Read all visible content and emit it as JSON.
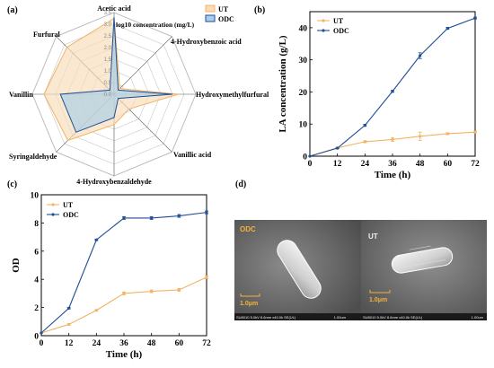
{
  "panels": {
    "a": "(a)",
    "b": "(b)",
    "c": "(c)",
    "d": "(d)"
  },
  "colors": {
    "ut": "#f2b366",
    "odc": "#1f4e96",
    "ut_fill": "#f8dcb8",
    "odc_fill": "#a9cfe6",
    "radar_grid": "#b8b8b8",
    "sem_bg": "#6a6a6a",
    "sem_label": "#f0b23a"
  },
  "chart_data": [
    {
      "type": "radar",
      "panel": "(a)",
      "axes": [
        "Acetic acid",
        "4-Hydroxybenzoic acid",
        "Hydroxymethylfurfural",
        "Vanillic acid",
        "4-Hydroxybenzaldehyde",
        "Syringaldehyde",
        "Vanillin",
        "Furfural"
      ],
      "range": [
        0,
        3.5
      ],
      "scale_title": "log10 concentration (mg/L)",
      "scale_ticks": [
        "0.0",
        "0.5",
        "1.0",
        "1.5",
        "2.0",
        "2.5",
        "3.0",
        "3.5"
      ],
      "legend": [
        "UT",
        "ODC"
      ],
      "series": [
        {
          "name": "UT",
          "values": [
            3.25,
            0.35,
            2.75,
            0.9,
            1.3,
            2.8,
            3.0,
            2.85
          ]
        },
        {
          "name": "ODC",
          "values": [
            3.3,
            0.25,
            2.5,
            0.25,
            1.0,
            2.3,
            2.3,
            0.25
          ]
        }
      ]
    },
    {
      "type": "line",
      "panel": "(b)",
      "xlabel": "Time (h)",
      "ylabel": "LA concentration (g/L)",
      "x": [
        0,
        12,
        24,
        36,
        48,
        60,
        72
      ],
      "xlim": [
        0,
        72
      ],
      "ylim": [
        0,
        45
      ],
      "xticks": [
        0,
        12,
        24,
        36,
        48,
        60,
        72
      ],
      "yticks": [
        0,
        10,
        20,
        30,
        40
      ],
      "series": [
        {
          "name": "UT",
          "values": [
            0,
            2.6,
            4.5,
            5.2,
            6.2,
            7.0,
            7.5
          ],
          "errors": [
            0,
            0.2,
            0.3,
            0.6,
            1.3,
            0.3,
            0.3
          ]
        },
        {
          "name": "ODC",
          "values": [
            0,
            2.5,
            9.6,
            20.2,
            31.3,
            39.8,
            43.0
          ],
          "errors": [
            0,
            0.2,
            0.3,
            0.3,
            0.9,
            0.3,
            0.3
          ]
        }
      ]
    },
    {
      "type": "line",
      "panel": "(c)",
      "xlabel": "Time (h)",
      "ylabel": "OD",
      "x": [
        0,
        12,
        24,
        36,
        48,
        60,
        72
      ],
      "xlim": [
        0,
        72
      ],
      "ylim": [
        0,
        10
      ],
      "xticks": [
        0,
        12,
        24,
        36,
        48,
        60,
        72
      ],
      "yticks": [
        0,
        2,
        4,
        6,
        8,
        10
      ],
      "series": [
        {
          "name": "UT",
          "values": [
            0.2,
            0.8,
            1.8,
            3.0,
            3.15,
            3.25,
            4.15
          ],
          "errors": [
            0,
            0.05,
            0.05,
            0.1,
            0.1,
            0.1,
            0.1
          ]
        },
        {
          "name": "ODC",
          "values": [
            0.2,
            1.95,
            6.8,
            8.35,
            8.35,
            8.5,
            8.75
          ],
          "errors": [
            0,
            0.05,
            0.05,
            0.1,
            0.1,
            0.1,
            0.1
          ]
        }
      ]
    }
  ],
  "sem": {
    "left_label": "ODC",
    "right_label": "UT",
    "left_scale": "1.0μm",
    "right_scale": "1.0μm",
    "left_footer": "SU8010 5.0kV 8.6mm x40.0k SE(UL)",
    "left_footer_scale": "1.00um",
    "right_footer": "SU8010 5.0kV 8.6mm x40.0k SE(UL)",
    "right_footer_scale": "1.00um"
  }
}
